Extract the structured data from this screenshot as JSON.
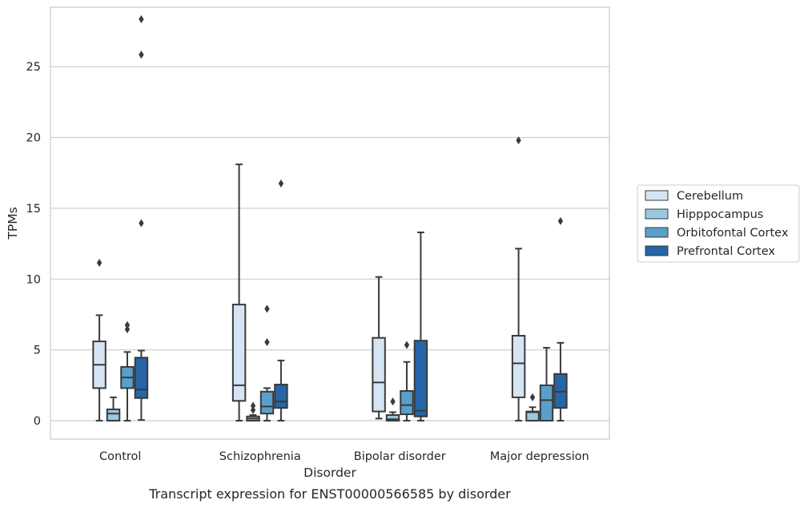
{
  "chart_data": {
    "type": "box",
    "title": "",
    "caption": "Transcript expression for ENST00000566585 by disorder",
    "xlabel": "Disorder",
    "ylabel": "TPMs",
    "ylim": [
      -1.3,
      29.2
    ],
    "yticks": [
      0,
      5,
      10,
      15,
      20,
      25
    ],
    "grid": "horizontal",
    "legend_position": "right",
    "categories": [
      "Control",
      "Schizophrenia",
      "Bipolar disorder",
      "Major depression"
    ],
    "series": [
      {
        "name": "Cerebellum",
        "color": "#d6e5f4",
        "boxes": [
          {
            "whisker_low": 0,
            "q1": 2.3,
            "median": 3.95,
            "q3": 5.6,
            "whisker_high": 7.45,
            "outliers": [
              11.15
            ]
          },
          {
            "whisker_low": 0,
            "q1": 1.4,
            "median": 2.5,
            "q3": 8.2,
            "whisker_high": 18.1,
            "outliers": []
          },
          {
            "whisker_low": 0.15,
            "q1": 0.65,
            "median": 2.7,
            "q3": 5.85,
            "whisker_high": 10.15,
            "outliers": []
          },
          {
            "whisker_low": 0,
            "q1": 1.65,
            "median": 4.05,
            "q3": 6.0,
            "whisker_high": 12.15,
            "outliers": [
              19.8
            ]
          }
        ]
      },
      {
        "name": "Hipppocampus",
        "color": "#9ac8e0",
        "boxes": [
          {
            "whisker_low": 0,
            "q1": 0,
            "median": 0.5,
            "q3": 0.8,
            "whisker_high": 1.65,
            "outliers": []
          },
          {
            "whisker_low": 0,
            "q1": 0,
            "median": 0.15,
            "q3": 0.3,
            "whisker_high": 0.4,
            "outliers": [
              0.75,
              1.05
            ]
          },
          {
            "whisker_low": 0,
            "q1": 0,
            "median": 0.1,
            "q3": 0.4,
            "whisker_high": 0.6,
            "outliers": [
              1.35
            ]
          },
          {
            "whisker_low": 0,
            "q1": 0,
            "median": 0.6,
            "q3": 0.65,
            "whisker_high": 0.95,
            "outliers": [
              1.65
            ]
          }
        ]
      },
      {
        "name": "Orbitofontal Cortex",
        "color": "#5a9fcb",
        "boxes": [
          {
            "whisker_low": 0,
            "q1": 2.3,
            "median": 3.05,
            "q3": 3.8,
            "whisker_high": 4.85,
            "outliers": [
              6.45,
              6.75
            ]
          },
          {
            "whisker_low": 0,
            "q1": 0.5,
            "median": 1.0,
            "q3": 2.05,
            "whisker_high": 2.3,
            "outliers": [
              5.55,
              7.9
            ]
          },
          {
            "whisker_low": 0,
            "q1": 0.45,
            "median": 1.1,
            "q3": 2.1,
            "whisker_high": 4.15,
            "outliers": [
              5.35
            ]
          },
          {
            "whisker_low": 0,
            "q1": 0,
            "median": 1.45,
            "q3": 2.5,
            "whisker_high": 5.15,
            "outliers": []
          }
        ]
      },
      {
        "name": "Prefrontal Cortex",
        "color": "#2665a7",
        "boxes": [
          {
            "whisker_low": 0.05,
            "q1": 1.6,
            "median": 2.2,
            "q3": 4.45,
            "whisker_high": 4.95,
            "outliers": [
              13.95,
              25.85,
              28.35
            ]
          },
          {
            "whisker_low": 0,
            "q1": 0.9,
            "median": 1.35,
            "q3": 2.55,
            "whisker_high": 4.25,
            "outliers": [
              16.75
            ]
          },
          {
            "whisker_low": 0,
            "q1": 0.3,
            "median": 0.7,
            "q3": 5.65,
            "whisker_high": 13.3,
            "outliers": []
          },
          {
            "whisker_low": 0,
            "q1": 0.9,
            "median": 2.05,
            "q3": 3.3,
            "whisker_high": 5.5,
            "outliers": [
              14.1
            ]
          }
        ]
      }
    ]
  }
}
